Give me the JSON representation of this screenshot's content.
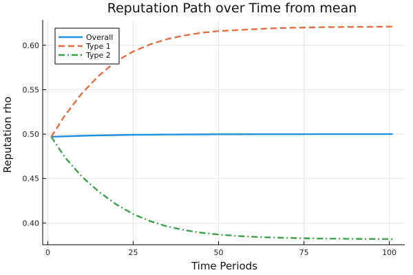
{
  "chart_data": {
    "type": "line",
    "title": "Reputation Path over Time from mean",
    "xlabel": "Time Periods",
    "ylabel": "Reputation rho",
    "xlim": [
      -1.5,
      104.5
    ],
    "ylim": [
      0.3755,
      0.6285
    ],
    "xticks": [
      0,
      25,
      50,
      75,
      100
    ],
    "xtick_labels": [
      "0",
      "25",
      "50",
      "75",
      "100"
    ],
    "yticks": [
      0.4,
      0.45,
      0.5,
      0.55,
      0.6
    ],
    "ytick_labels": [
      "0.40",
      "0.45",
      "0.50",
      "0.55",
      "0.60"
    ],
    "grid": true,
    "legend_position": "top-left",
    "x": [
      1,
      5,
      10,
      15,
      20,
      25,
      30,
      35,
      40,
      45,
      50,
      55,
      60,
      65,
      70,
      75,
      80,
      85,
      90,
      95,
      100,
      101
    ],
    "series": [
      {
        "name": "Overall",
        "color": "#1f8fe0",
        "dash": "solid",
        "values": [
          0.497,
          0.4975,
          0.4981,
          0.4986,
          0.4989,
          0.4992,
          0.4994,
          0.4995,
          0.4996,
          0.4997,
          0.4998,
          0.4998,
          0.4999,
          0.4999,
          0.4999,
          0.4999,
          0.5,
          0.5,
          0.5,
          0.5,
          0.5,
          0.5
        ]
      },
      {
        "name": "Type 1",
        "color": "#e26d3f",
        "dash": "dash",
        "values": [
          0.497,
          0.521,
          0.546,
          0.566,
          0.582,
          0.593,
          0.601,
          0.607,
          0.611,
          0.614,
          0.616,
          0.617,
          0.618,
          0.619,
          0.6195,
          0.62,
          0.6203,
          0.6205,
          0.6207,
          0.6208,
          0.6209,
          0.621
        ]
      },
      {
        "name": "Type 2",
        "color": "#3a9e4a",
        "dash": "dashdot",
        "values": [
          0.497,
          0.474,
          0.452,
          0.435,
          0.421,
          0.41,
          0.402,
          0.396,
          0.392,
          0.389,
          0.387,
          0.3855,
          0.3845,
          0.3838,
          0.3832,
          0.3828,
          0.3825,
          0.3823,
          0.3821,
          0.382,
          0.3819,
          0.3818
        ]
      }
    ]
  }
}
